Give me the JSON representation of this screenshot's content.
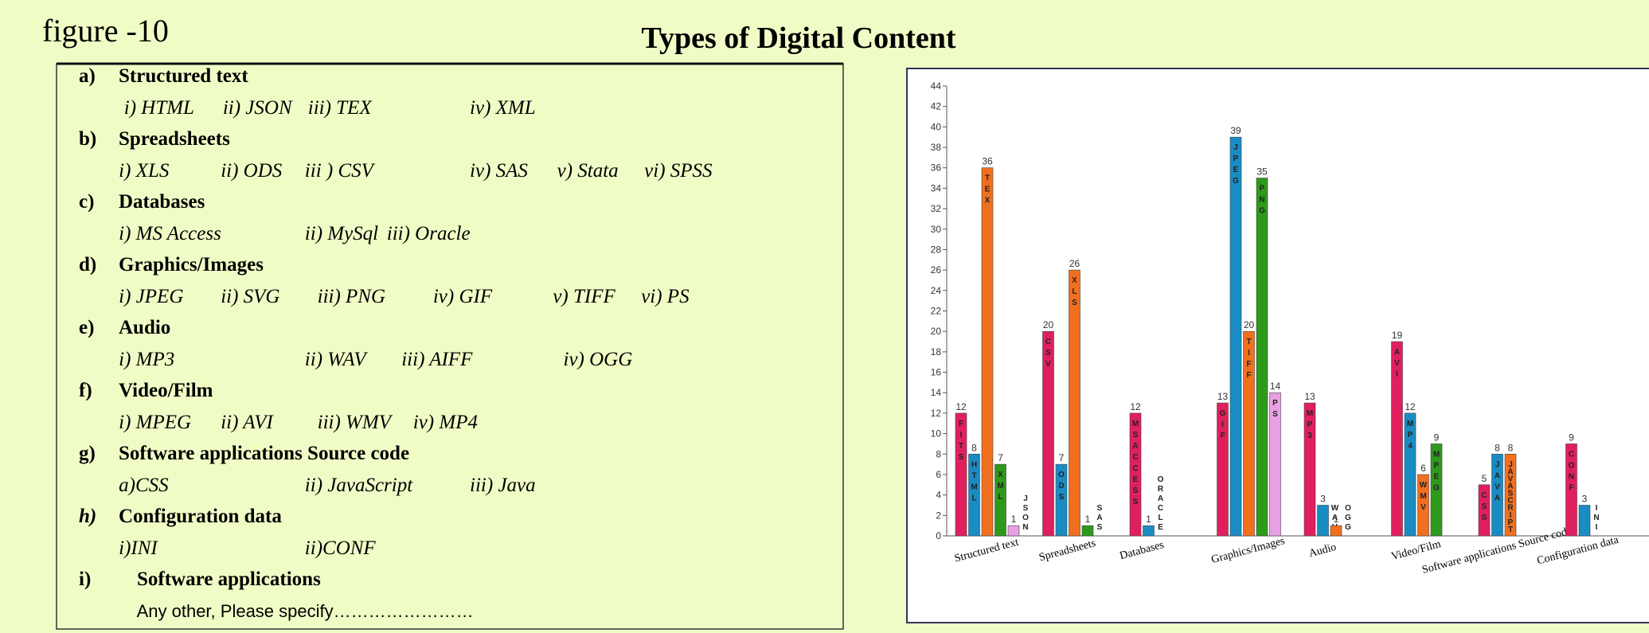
{
  "figure_label": "figure -10",
  "list": [
    {
      "letter": "a)",
      "label": "Structured text",
      "items": [
        "i) HTML",
        "ii) JSON",
        "iii)  TEX",
        "iv) XML"
      ]
    },
    {
      "letter": "b)",
      "label": "Spreadsheets",
      "items": [
        "i)   XLS",
        "ii) ODS",
        "iii ) CSV",
        "iv) SAS",
        "v) Stata",
        "vi) SPSS"
      ]
    },
    {
      "letter": "c)",
      "label": "Databases",
      "items": [
        "i)   MS Access",
        "ii)  MySql",
        "iii)  Oracle"
      ]
    },
    {
      "letter": "d)",
      "label": "Graphics/Images",
      "items": [
        "i)   JPEG",
        "ii)  SVG",
        "iii)  PNG",
        "iv)  GIF",
        "v)  TIFF",
        "vi)  PS"
      ]
    },
    {
      "letter": "e)",
      "label": "Audio",
      "items": [
        "i)   MP3",
        "ii)  WAV",
        "iii)  AIFF",
        "iv)  OGG"
      ]
    },
    {
      "letter": "f)",
      "label": "Video/Film",
      "items": [
        "i)   MPEG",
        "ii)  AVI",
        "iii)  WMV",
        "iv)  MP4"
      ]
    },
    {
      "letter": "g)",
      "label": "Software applications Source code",
      "items": [
        "a)CSS",
        "ii) JavaScript",
        "iii) Java"
      ]
    },
    {
      "letter": "h)",
      "label": "Configuration data",
      "items": [
        "i)INI",
        "ii)CONF"
      ]
    },
    {
      "letter": "i)",
      "label": "Software applications",
      "items": [
        "Any other, Please specify……………………"
      ]
    }
  ],
  "chart_data": {
    "type": "grouped_bar",
    "title": "Types of Digital Content",
    "ylim": [
      0,
      44
    ],
    "yticks": [
      0,
      2,
      4,
      6,
      8,
      10,
      12,
      14,
      16,
      18,
      20,
      22,
      24,
      26,
      28,
      30,
      32,
      34,
      36,
      38,
      40,
      42,
      44
    ],
    "groups": [
      {
        "category": "Structured text",
        "bars": [
          {
            "name": "FITS",
            "value": 12,
            "color": "#e0205e"
          },
          {
            "name": "HTML",
            "value": 8,
            "color": "#1a8cc4"
          },
          {
            "name": "TEX",
            "value": 36,
            "color": "#f07020"
          },
          {
            "name": "XML",
            "value": 7,
            "color": "#2e9a1a"
          },
          {
            "name": "JSON",
            "value": 1,
            "color": "#e8a0e4"
          }
        ]
      },
      {
        "category": "Spreadsheets",
        "bars": [
          {
            "name": "CSV",
            "value": 20,
            "color": "#e0205e"
          },
          {
            "name": "ODS",
            "value": 7,
            "color": "#1a8cc4"
          },
          {
            "name": "XLS",
            "value": 26,
            "color": "#f07020"
          },
          {
            "name": "SAS",
            "value": 1,
            "color": "#2e9a1a"
          }
        ]
      },
      {
        "category": "Databases",
        "bars": [
          {
            "name": "MSACCESS",
            "value": 12,
            "color": "#e0205e"
          },
          {
            "name": "ORACLE",
            "value": 1,
            "color": "#1a8cc4"
          }
        ]
      },
      {
        "category": "Graphics/Images",
        "bars": [
          {
            "name": "GIF",
            "value": 13,
            "color": "#e0205e"
          },
          {
            "name": "JPEG",
            "value": 39,
            "color": "#1a8cc4"
          },
          {
            "name": "TIFF",
            "value": 20,
            "color": "#f07020"
          },
          {
            "name": "PNG",
            "value": 35,
            "color": "#2e9a1a"
          },
          {
            "name": "PS",
            "value": 14,
            "color": "#e8a0e4"
          }
        ]
      },
      {
        "category": "Audio",
        "bars": [
          {
            "name": "MP3",
            "value": 13,
            "color": "#e0205e"
          },
          {
            "name": "WAV",
            "value": 3,
            "color": "#1a8cc4"
          },
          {
            "name": "OGG",
            "value": 1,
            "color": "#f07020"
          }
        ]
      },
      {
        "category": "Video/Film",
        "bars": [
          {
            "name": "AVI",
            "value": 19,
            "color": "#e0205e"
          },
          {
            "name": "MP4",
            "value": 12,
            "color": "#1a8cc4"
          },
          {
            "name": "WMV",
            "value": 6,
            "color": "#f07020"
          },
          {
            "name": "MPEG",
            "value": 9,
            "color": "#2e9a1a"
          }
        ]
      },
      {
        "category": "Software applications Source code",
        "bars": [
          {
            "name": "CSS",
            "value": 5,
            "color": "#e0205e"
          },
          {
            "name": "JAVA",
            "value": 8,
            "color": "#1a8cc4"
          },
          {
            "name": "JAVASCRIPT",
            "value": 8,
            "color": "#f07020"
          }
        ]
      },
      {
        "category": "Configuration data",
        "bars": [
          {
            "name": "CONF",
            "value": 9,
            "color": "#e0205e"
          },
          {
            "name": "INI",
            "value": 3,
            "color": "#1a8cc4"
          }
        ]
      }
    ]
  }
}
